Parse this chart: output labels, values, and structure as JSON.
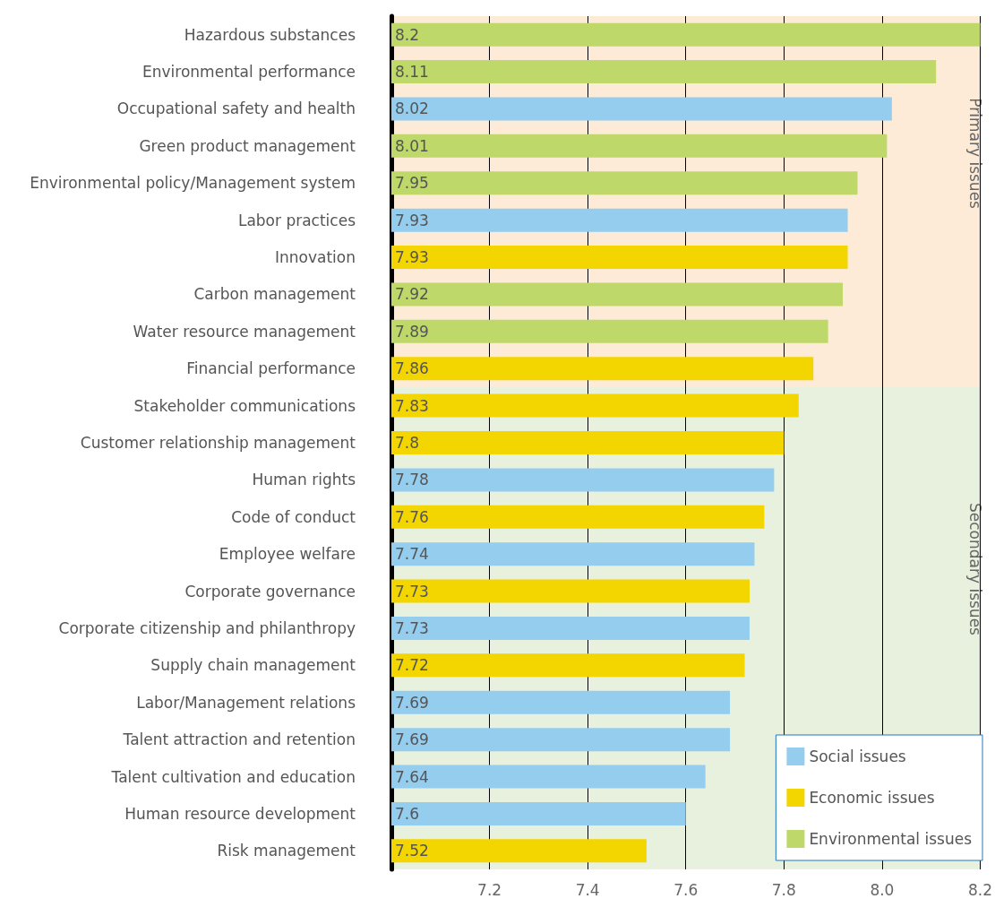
{
  "chart_data": {
    "type": "bar",
    "orientation": "horizontal",
    "categories": [
      "Hazardous substances",
      "Environmental performance",
      "Occupational safety and health",
      "Green product management",
      "Environmental policy/Management system",
      "Labor practices",
      "Innovation",
      "Carbon management",
      "Water resource management",
      "Financial performance",
      "Stakeholder communications",
      "Customer relationship management",
      "Human rights",
      "Code of conduct",
      "Employee welfare",
      "Corporate governance",
      "Corporate citizenship and philanthropy",
      "Supply chain management",
      "Labor/Management relations",
      "Talent attraction and retention",
      "Talent cultivation and education",
      "Human resource development",
      "Risk management"
    ],
    "series": [
      {
        "name": "Social issues",
        "color": "#95cdef",
        "values": [
          null,
          null,
          8.02,
          null,
          null,
          7.93,
          null,
          null,
          null,
          null,
          null,
          null,
          7.78,
          null,
          7.74,
          null,
          7.73,
          null,
          7.69,
          7.69,
          7.64,
          7.6,
          null
        ]
      },
      {
        "name": "Economic issues",
        "color": "#f3d500",
        "values": [
          null,
          null,
          null,
          null,
          null,
          null,
          7.93,
          null,
          null,
          7.86,
          7.83,
          7.8,
          null,
          7.76,
          null,
          7.73,
          null,
          7.72,
          null,
          null,
          null,
          null,
          7.52
        ]
      },
      {
        "name": "Environmental issues",
        "color": "#bed86a",
        "values": [
          8.2,
          8.11,
          null,
          8.01,
          7.95,
          null,
          null,
          7.92,
          7.89,
          null,
          null,
          null,
          null,
          null,
          null,
          null,
          null,
          null,
          null,
          null,
          null,
          null,
          null
        ]
      }
    ],
    "xlim": [
      7.0,
      8.2
    ],
    "xticks": [
      7.2,
      7.4,
      7.6,
      7.8,
      {
        "value": 8,
        "label": "8.0"
      },
      8.2
    ],
    "bands": [
      {
        "axis": "y",
        "from": "Hazardous substances",
        "to": "Financial performance",
        "label": "Primary issues",
        "color": "#fdebd8"
      },
      {
        "axis": "y",
        "from": "Stakeholder communications",
        "to": "Risk management",
        "label": "Secondary issues",
        "color": "#e8f1de"
      }
    ],
    "data_labels": true,
    "grid": "x",
    "legend": "bottom right"
  }
}
